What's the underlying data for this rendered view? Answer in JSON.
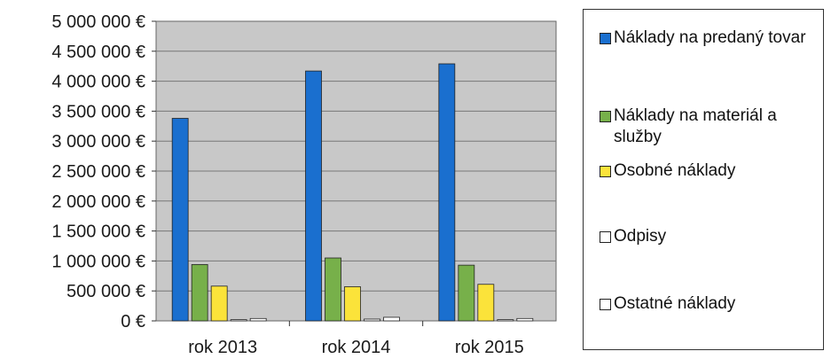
{
  "chart_data": {
    "type": "bar",
    "categories": [
      "rok 2013",
      "rok 2014",
      "rok 2015"
    ],
    "series": [
      {
        "name": "Náklady na predaný tovar",
        "color": "#1a6fcf",
        "values": [
          3380000,
          4170000,
          4290000
        ]
      },
      {
        "name": "Náklady na materiál a služby",
        "color": "#77b04a",
        "values": [
          940000,
          1050000,
          930000
        ]
      },
      {
        "name": "Osobné náklady",
        "color": "#fbe33a",
        "values": [
          580000,
          570000,
          610000
        ]
      },
      {
        "name": "Odpisy",
        "color": "#ffffff",
        "values": [
          20000,
          30000,
          20000
        ]
      },
      {
        "name": "Ostatné náklady",
        "color": "#ffffff",
        "values": [
          40000,
          60000,
          40000
        ]
      }
    ],
    "ylim": [
      0,
      5000000
    ],
    "yticks": [
      0,
      500000,
      1000000,
      1500000,
      2000000,
      2500000,
      3000000,
      3500000,
      4000000,
      4500000,
      5000000
    ],
    "ytick_labels": [
      "0 €",
      "500 000 €",
      "1 000 000 €",
      "1 500 000 €",
      "2 000 000 €",
      "2 500 000 €",
      "3 000 000 €",
      "3 500 000 €",
      "4 000 000 €",
      "4 500 000 €",
      "5 000 000 €"
    ],
    "plot_background": "#c8c8c8",
    "grid": true,
    "legend_position": "right"
  }
}
